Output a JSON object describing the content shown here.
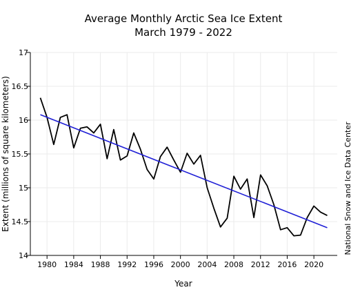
{
  "chart_data": {
    "type": "line",
    "title_line1": "Average Monthly Arctic Sea Ice Extent",
    "title_line2": "March 1979 - 2022",
    "xlabel": "Year",
    "ylabel": "Extent (millions of square kilometers)",
    "credit": "National Snow and Ice Data Center",
    "xlim": [
      1977.5,
      2023.5
    ],
    "ylim": [
      14,
      17
    ],
    "x_ticks": [
      1980,
      1984,
      1988,
      1992,
      1996,
      2000,
      2004,
      2008,
      2012,
      2016,
      2020
    ],
    "x_tick_labels": [
      "1980",
      "1984",
      "1988",
      "1992",
      "1996",
      "2000",
      "2004",
      "2008",
      "2012",
      "2016",
      "2020"
    ],
    "y_ticks": [
      14,
      14.5,
      15,
      15.5,
      16,
      16.5,
      17
    ],
    "y_tick_labels": [
      "14",
      "14.5",
      "15",
      "15.5",
      "16",
      "16.5",
      "17"
    ],
    "grid": true,
    "series": [
      {
        "style": "black solid line",
        "color": "#000000",
        "x": [
          1979,
          1980,
          1981,
          1982,
          1983,
          1984,
          1985,
          1986,
          1987,
          1988,
          1989,
          1990,
          1991,
          1992,
          1993,
          1994,
          1995,
          1996,
          1997,
          1998,
          1999,
          2000,
          2001,
          2002,
          2003,
          2004,
          2005,
          2006,
          2007,
          2008,
          2009,
          2010,
          2011,
          2012,
          2013,
          2014,
          2015,
          2016,
          2017,
          2018,
          2019,
          2020,
          2021,
          2022
        ],
        "values": [
          16.33,
          16.04,
          15.64,
          16.04,
          16.08,
          15.59,
          15.88,
          15.9,
          15.81,
          15.94,
          15.43,
          15.86,
          15.41,
          15.47,
          15.81,
          15.57,
          15.27,
          15.13,
          15.46,
          15.6,
          15.41,
          15.23,
          15.51,
          15.35,
          15.48,
          15.0,
          14.7,
          14.42,
          14.55,
          15.17,
          14.98,
          15.13,
          14.56,
          15.19,
          15.03,
          14.75,
          14.38,
          14.41,
          14.29,
          14.3,
          14.56,
          14.73,
          14.64,
          14.59
        ]
      },
      {
        "style": "blue linear trend line",
        "color": "#1f1fd6",
        "x": [
          1979,
          2022
        ],
        "values": [
          16.08,
          14.41
        ]
      }
    ]
  }
}
